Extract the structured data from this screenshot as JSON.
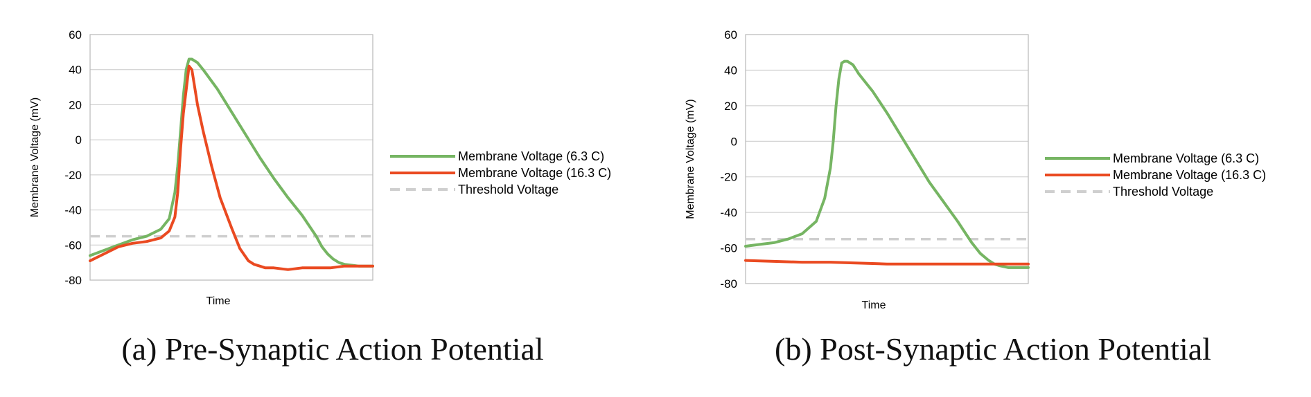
{
  "colors": {
    "warm": "#76b563",
    "hot": "#ea4a21",
    "threshold": "#cfcfcf",
    "grid": "#c8c8c8",
    "frame": "#b8b8b8"
  },
  "chart_data": [
    {
      "type": "line",
      "caption": "(a) Pre-Synaptic Action Potential",
      "xlabel": "Time",
      "ylabel": "Membrane Voltage (mV)",
      "ylim": [
        -80,
        60
      ],
      "yticks": [
        "60",
        "40",
        "20",
        "0",
        "-20",
        "-40",
        "-60",
        "-80"
      ],
      "xlim": [
        0,
        100
      ],
      "grid": true,
      "legend_position": "right",
      "series": [
        {
          "name": "Membrane Voltage (6.3 C)",
          "color": "#76b563",
          "style": "solid",
          "x": [
            0,
            5,
            10,
            15,
            20,
            25,
            28,
            30,
            31,
            32,
            33,
            34,
            35,
            36,
            38,
            40,
            45,
            50,
            55,
            60,
            65,
            70,
            75,
            80,
            82,
            84,
            86,
            88,
            90,
            95,
            100
          ],
          "y": [
            -66,
            -63,
            -60,
            -57,
            -55,
            -51,
            -45,
            -30,
            -15,
            5,
            25,
            40,
            46,
            46,
            44,
            40,
            29,
            16,
            3,
            -10,
            -22,
            -33,
            -43,
            -55,
            -61,
            -65,
            -68,
            -70,
            -71,
            -72,
            -72
          ]
        },
        {
          "name": "Membrane Voltage (16.3 C)",
          "color": "#ea4a21",
          "style": "solid",
          "x": [
            0,
            5,
            10,
            15,
            20,
            25,
            28,
            30,
            31,
            32,
            33,
            35,
            36,
            37,
            38,
            40,
            43,
            46,
            50,
            53,
            56,
            58,
            60,
            62,
            65,
            70,
            75,
            80,
            85,
            90,
            95,
            100
          ],
          "y": [
            -69,
            -65,
            -61,
            -59,
            -58,
            -56,
            -52,
            -44,
            -30,
            -5,
            15,
            42,
            40,
            30,
            20,
            5,
            -15,
            -33,
            -50,
            -62,
            -69,
            -71,
            -72,
            -73,
            -73,
            -74,
            -73,
            -73,
            -73,
            -72,
            -72,
            -72
          ]
        },
        {
          "name": "Threshold Voltage",
          "color": "#cfcfcf",
          "style": "dashed",
          "x": [
            0,
            100
          ],
          "y": [
            -55,
            -55
          ]
        }
      ]
    },
    {
      "type": "line",
      "caption": "(b) Post-Synaptic Action Potential",
      "xlabel": "Time",
      "ylabel": "Membrane Voltage (mV)",
      "ylim": [
        -80,
        60
      ],
      "yticks": [
        "60",
        "40",
        "20",
        "0",
        "-20",
        "-40",
        "-60",
        "-80"
      ],
      "xlim": [
        0,
        100
      ],
      "grid": true,
      "legend_position": "right",
      "series": [
        {
          "name": "Membrane Voltage (6.3 C)",
          "color": "#76b563",
          "style": "solid",
          "x": [
            0,
            5,
            10,
            15,
            20,
            25,
            28,
            30,
            31,
            32,
            33,
            34,
            35,
            36,
            38,
            40,
            45,
            50,
            55,
            60,
            65,
            70,
            75,
            80,
            83,
            86,
            88,
            90,
            93,
            96,
            100
          ],
          "y": [
            -59,
            -58,
            -57,
            -55,
            -52,
            -45,
            -32,
            -15,
            0,
            20,
            35,
            44,
            45,
            45,
            43,
            38,
            28,
            16,
            3,
            -10,
            -23,
            -34,
            -45,
            -57,
            -63,
            -67,
            -69,
            -70,
            -71,
            -71,
            -71
          ]
        },
        {
          "name": "Membrane Voltage (16.3 C)",
          "color": "#ea4a21",
          "style": "solid",
          "x": [
            0,
            10,
            20,
            30,
            40,
            50,
            60,
            70,
            80,
            90,
            100
          ],
          "y": [
            -67,
            -67.5,
            -68,
            -68,
            -68.5,
            -69,
            -69,
            -69,
            -69,
            -69,
            -69
          ]
        },
        {
          "name": "Threshold Voltage",
          "color": "#cfcfcf",
          "style": "dashed",
          "x": [
            0,
            100
          ],
          "y": [
            -55,
            -55
          ]
        }
      ]
    }
  ]
}
